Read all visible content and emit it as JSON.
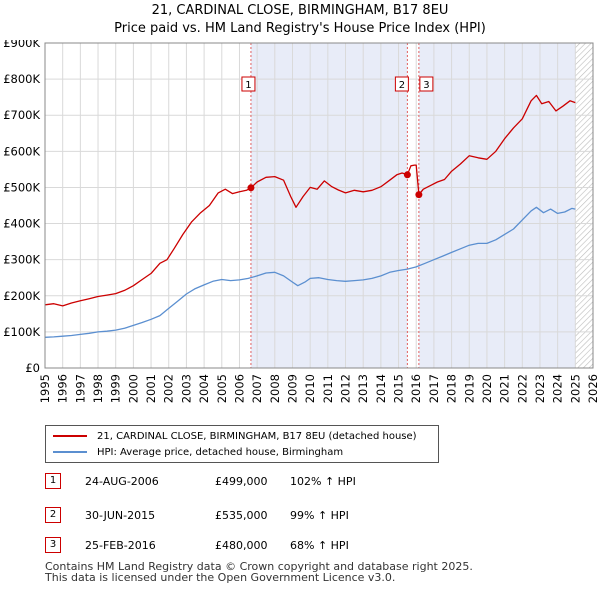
{
  "title": {
    "line1": "21, CARDINAL CLOSE, BIRMINGHAM, B17 8EU",
    "line2": "Price paid vs. HM Land Registry's House Price Index (HPI)"
  },
  "colors": {
    "property": "#cc0000",
    "hpi": "#5b8fd0",
    "span_fill": "#e8ecf8",
    "grid": "#d9d9d9",
    "vline": "#e06060"
  },
  "chart_data": {
    "type": "line",
    "title": "21, CARDINAL CLOSE, BIRMINGHAM, B17 8EU — Price paid vs. HM Land Registry's House Price Index (HPI)",
    "xlim": [
      1995,
      2026
    ],
    "ylim": [
      0,
      900000
    ],
    "x_ticks": [
      "1995",
      "1996",
      "1997",
      "1998",
      "1999",
      "2000",
      "2001",
      "2002",
      "2003",
      "2004",
      "2005",
      "2006",
      "2007",
      "2008",
      "2009",
      "2010",
      "2011",
      "2012",
      "2013",
      "2014",
      "2015",
      "2016",
      "2017",
      "2018",
      "2019",
      "2020",
      "2021",
      "2022",
      "2023",
      "2024",
      "2025",
      "2026"
    ],
    "y_ticks": [
      {
        "value": 0,
        "label": "£0"
      },
      {
        "value": 100000,
        "label": "£100K"
      },
      {
        "value": 200000,
        "label": "£200K"
      },
      {
        "value": 300000,
        "label": "£300K"
      },
      {
        "value": 400000,
        "label": "£400K"
      },
      {
        "value": 500000,
        "label": "£500K"
      },
      {
        "value": 600000,
        "label": "£600K"
      },
      {
        "value": 700000,
        "label": "£700K"
      },
      {
        "value": 800000,
        "label": "£800K"
      },
      {
        "value": 900000,
        "label": "£900K"
      }
    ],
    "series": [
      {
        "name": "21, CARDINAL CLOSE, BIRMINGHAM, B17 8EU (detached house)",
        "points": [
          [
            1995.0,
            175000
          ],
          [
            1995.5,
            178000
          ],
          [
            1996.0,
            172000
          ],
          [
            1996.5,
            180000
          ],
          [
            1997.0,
            186000
          ],
          [
            1997.5,
            192000
          ],
          [
            1998.0,
            198000
          ],
          [
            1998.5,
            202000
          ],
          [
            1999.0,
            206000
          ],
          [
            1999.5,
            215000
          ],
          [
            2000.0,
            228000
          ],
          [
            2000.5,
            245000
          ],
          [
            2001.0,
            262000
          ],
          [
            2001.5,
            290000
          ],
          [
            2001.9,
            300000
          ],
          [
            2002.3,
            330000
          ],
          [
            2002.8,
            370000
          ],
          [
            2003.3,
            405000
          ],
          [
            2003.8,
            430000
          ],
          [
            2004.3,
            450000
          ],
          [
            2004.8,
            485000
          ],
          [
            2005.2,
            495000
          ],
          [
            2005.6,
            483000
          ],
          [
            2006.0,
            488000
          ],
          [
            2006.4,
            492000
          ],
          [
            2006.65,
            499000
          ],
          [
            2007.0,
            515000
          ],
          [
            2007.5,
            528000
          ],
          [
            2008.0,
            530000
          ],
          [
            2008.5,
            520000
          ],
          [
            2008.9,
            475000
          ],
          [
            2009.2,
            445000
          ],
          [
            2009.6,
            475000
          ],
          [
            2010.0,
            500000
          ],
          [
            2010.4,
            495000
          ],
          [
            2010.8,
            518000
          ],
          [
            2011.2,
            503000
          ],
          [
            2011.6,
            493000
          ],
          [
            2012.0,
            485000
          ],
          [
            2012.5,
            492000
          ],
          [
            2013.0,
            488000
          ],
          [
            2013.5,
            492000
          ],
          [
            2014.0,
            502000
          ],
          [
            2014.5,
            520000
          ],
          [
            2014.9,
            535000
          ],
          [
            2015.2,
            540000
          ],
          [
            2015.5,
            535000
          ],
          [
            2015.7,
            560000
          ],
          [
            2015.9,
            562000
          ],
          [
            2016.0,
            562000
          ],
          [
            2016.15,
            480000
          ],
          [
            2016.4,
            495000
          ],
          [
            2016.8,
            505000
          ],
          [
            2017.2,
            515000
          ],
          [
            2017.6,
            522000
          ],
          [
            2018.0,
            545000
          ],
          [
            2018.5,
            565000
          ],
          [
            2019.0,
            588000
          ],
          [
            2019.5,
            582000
          ],
          [
            2020.0,
            578000
          ],
          [
            2020.5,
            600000
          ],
          [
            2021.0,
            635000
          ],
          [
            2021.5,
            665000
          ],
          [
            2022.0,
            690000
          ],
          [
            2022.5,
            740000
          ],
          [
            2022.8,
            755000
          ],
          [
            2023.1,
            732000
          ],
          [
            2023.5,
            738000
          ],
          [
            2023.9,
            712000
          ],
          [
            2024.3,
            725000
          ],
          [
            2024.7,
            740000
          ],
          [
            2025.0,
            735000
          ]
        ]
      },
      {
        "name": "HPI: Average price, detached house, Birmingham",
        "points": [
          [
            1995.0,
            85000
          ],
          [
            1995.5,
            86000
          ],
          [
            1996.0,
            88000
          ],
          [
            1996.5,
            90000
          ],
          [
            1997.0,
            93000
          ],
          [
            1997.5,
            96000
          ],
          [
            1998.0,
            100000
          ],
          [
            1998.5,
            102000
          ],
          [
            1999.0,
            105000
          ],
          [
            1999.5,
            110000
          ],
          [
            2000.0,
            118000
          ],
          [
            2000.5,
            126000
          ],
          [
            2001.0,
            135000
          ],
          [
            2001.5,
            145000
          ],
          [
            2002.0,
            165000
          ],
          [
            2002.5,
            185000
          ],
          [
            2003.0,
            205000
          ],
          [
            2003.5,
            220000
          ],
          [
            2004.0,
            230000
          ],
          [
            2004.5,
            240000
          ],
          [
            2005.0,
            245000
          ],
          [
            2005.5,
            242000
          ],
          [
            2006.0,
            244000
          ],
          [
            2006.5,
            248000
          ],
          [
            2007.0,
            255000
          ],
          [
            2007.5,
            263000
          ],
          [
            2008.0,
            265000
          ],
          [
            2008.5,
            255000
          ],
          [
            2009.0,
            238000
          ],
          [
            2009.3,
            228000
          ],
          [
            2009.7,
            238000
          ],
          [
            2010.0,
            248000
          ],
          [
            2010.5,
            250000
          ],
          [
            2011.0,
            245000
          ],
          [
            2011.5,
            242000
          ],
          [
            2012.0,
            240000
          ],
          [
            2012.5,
            242000
          ],
          [
            2013.0,
            244000
          ],
          [
            2013.5,
            248000
          ],
          [
            2014.0,
            255000
          ],
          [
            2014.5,
            265000
          ],
          [
            2015.0,
            270000
          ],
          [
            2015.5,
            274000
          ],
          [
            2016.0,
            280000
          ],
          [
            2016.5,
            290000
          ],
          [
            2017.0,
            300000
          ],
          [
            2017.5,
            310000
          ],
          [
            2018.0,
            320000
          ],
          [
            2018.5,
            330000
          ],
          [
            2019.0,
            340000
          ],
          [
            2019.5,
            345000
          ],
          [
            2020.0,
            345000
          ],
          [
            2020.5,
            355000
          ],
          [
            2021.0,
            370000
          ],
          [
            2021.5,
            385000
          ],
          [
            2022.0,
            410000
          ],
          [
            2022.5,
            435000
          ],
          [
            2022.8,
            445000
          ],
          [
            2023.2,
            430000
          ],
          [
            2023.6,
            440000
          ],
          [
            2024.0,
            428000
          ],
          [
            2024.4,
            432000
          ],
          [
            2024.8,
            442000
          ],
          [
            2025.0,
            440000
          ]
        ]
      }
    ],
    "sale_markers": [
      {
        "label": "1",
        "x": 2006.65,
        "y": 499000
      },
      {
        "label": "2",
        "x": 2015.5,
        "y": 535000
      },
      {
        "label": "3",
        "x": 2016.15,
        "y": 480000
      }
    ],
    "shaded_spans": [
      [
        2006.65,
        2015.5
      ],
      [
        2016.15,
        2025.0
      ]
    ],
    "hatch_from": 2025.0
  },
  "legend": {
    "property_label": "21, CARDINAL CLOSE, BIRMINGHAM, B17 8EU (detached house)",
    "hpi_label": "HPI: Average price, detached house, Birmingham"
  },
  "sales": [
    {
      "marker": "1",
      "date": "24-AUG-2006",
      "price": "£499,000",
      "hpi": "102% ↑ HPI"
    },
    {
      "marker": "2",
      "date": "30-JUN-2015",
      "price": "£535,000",
      "hpi": "99% ↑ HPI"
    },
    {
      "marker": "3",
      "date": "25-FEB-2016",
      "price": "£480,000",
      "hpi": "68% ↑ HPI"
    }
  ],
  "footer": {
    "line1": "Contains HM Land Registry data © Crown copyright and database right 2025.",
    "line2": "This data is licensed under the Open Government Licence v3.0."
  }
}
